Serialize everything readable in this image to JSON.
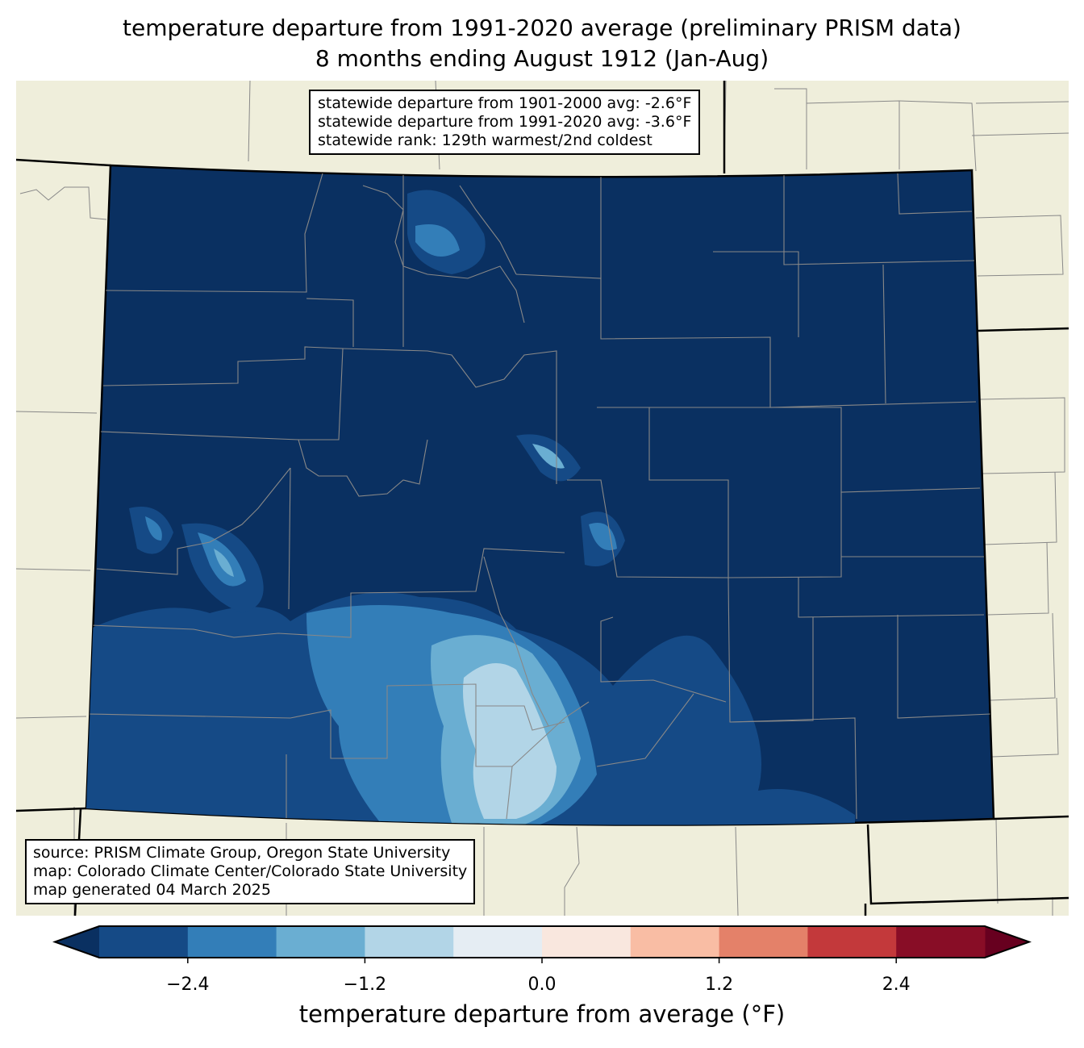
{
  "title": {
    "line1": "temperature departure from 1991-2020 average (preliminary PRISM data)",
    "line2": "8 months ending August 1912 (Jan-Aug)"
  },
  "info_box": {
    "line1": "statewide departure from 1901-2000 avg: -2.6°F",
    "line2": "statewide departure from 1991-2020 avg: -3.6°F",
    "line3": "statewide rank: 129th warmest/2nd coldest"
  },
  "source_box": {
    "line1": "source: PRISM Climate Group, Oregon State University",
    "line2": "map: Colorado Climate Center/Colorado State University",
    "line3": "map generated 04 March 2025"
  },
  "colorbar": {
    "label": "temperature departure from average (°F)",
    "ticks": [
      "−2.4",
      "−1.2",
      "0.0",
      "1.2",
      "2.4"
    ],
    "tick_values": [
      -2.4,
      -1.2,
      0.0,
      1.2,
      2.4
    ],
    "bounds": [
      -3.0,
      3.0
    ],
    "step": 0.6,
    "under_color": "#0a3061",
    "over_color": "#67001f",
    "colors": [
      "#154a86",
      "#337eb8",
      "#6aaed2",
      "#b2d5e7",
      "#e5edf3",
      "#f9e7de",
      "#f9bda4",
      "#e48169",
      "#c3393b",
      "#880d26"
    ]
  },
  "map_colors": {
    "land": "#efeedb",
    "colorado_base": "#0a3061"
  }
}
